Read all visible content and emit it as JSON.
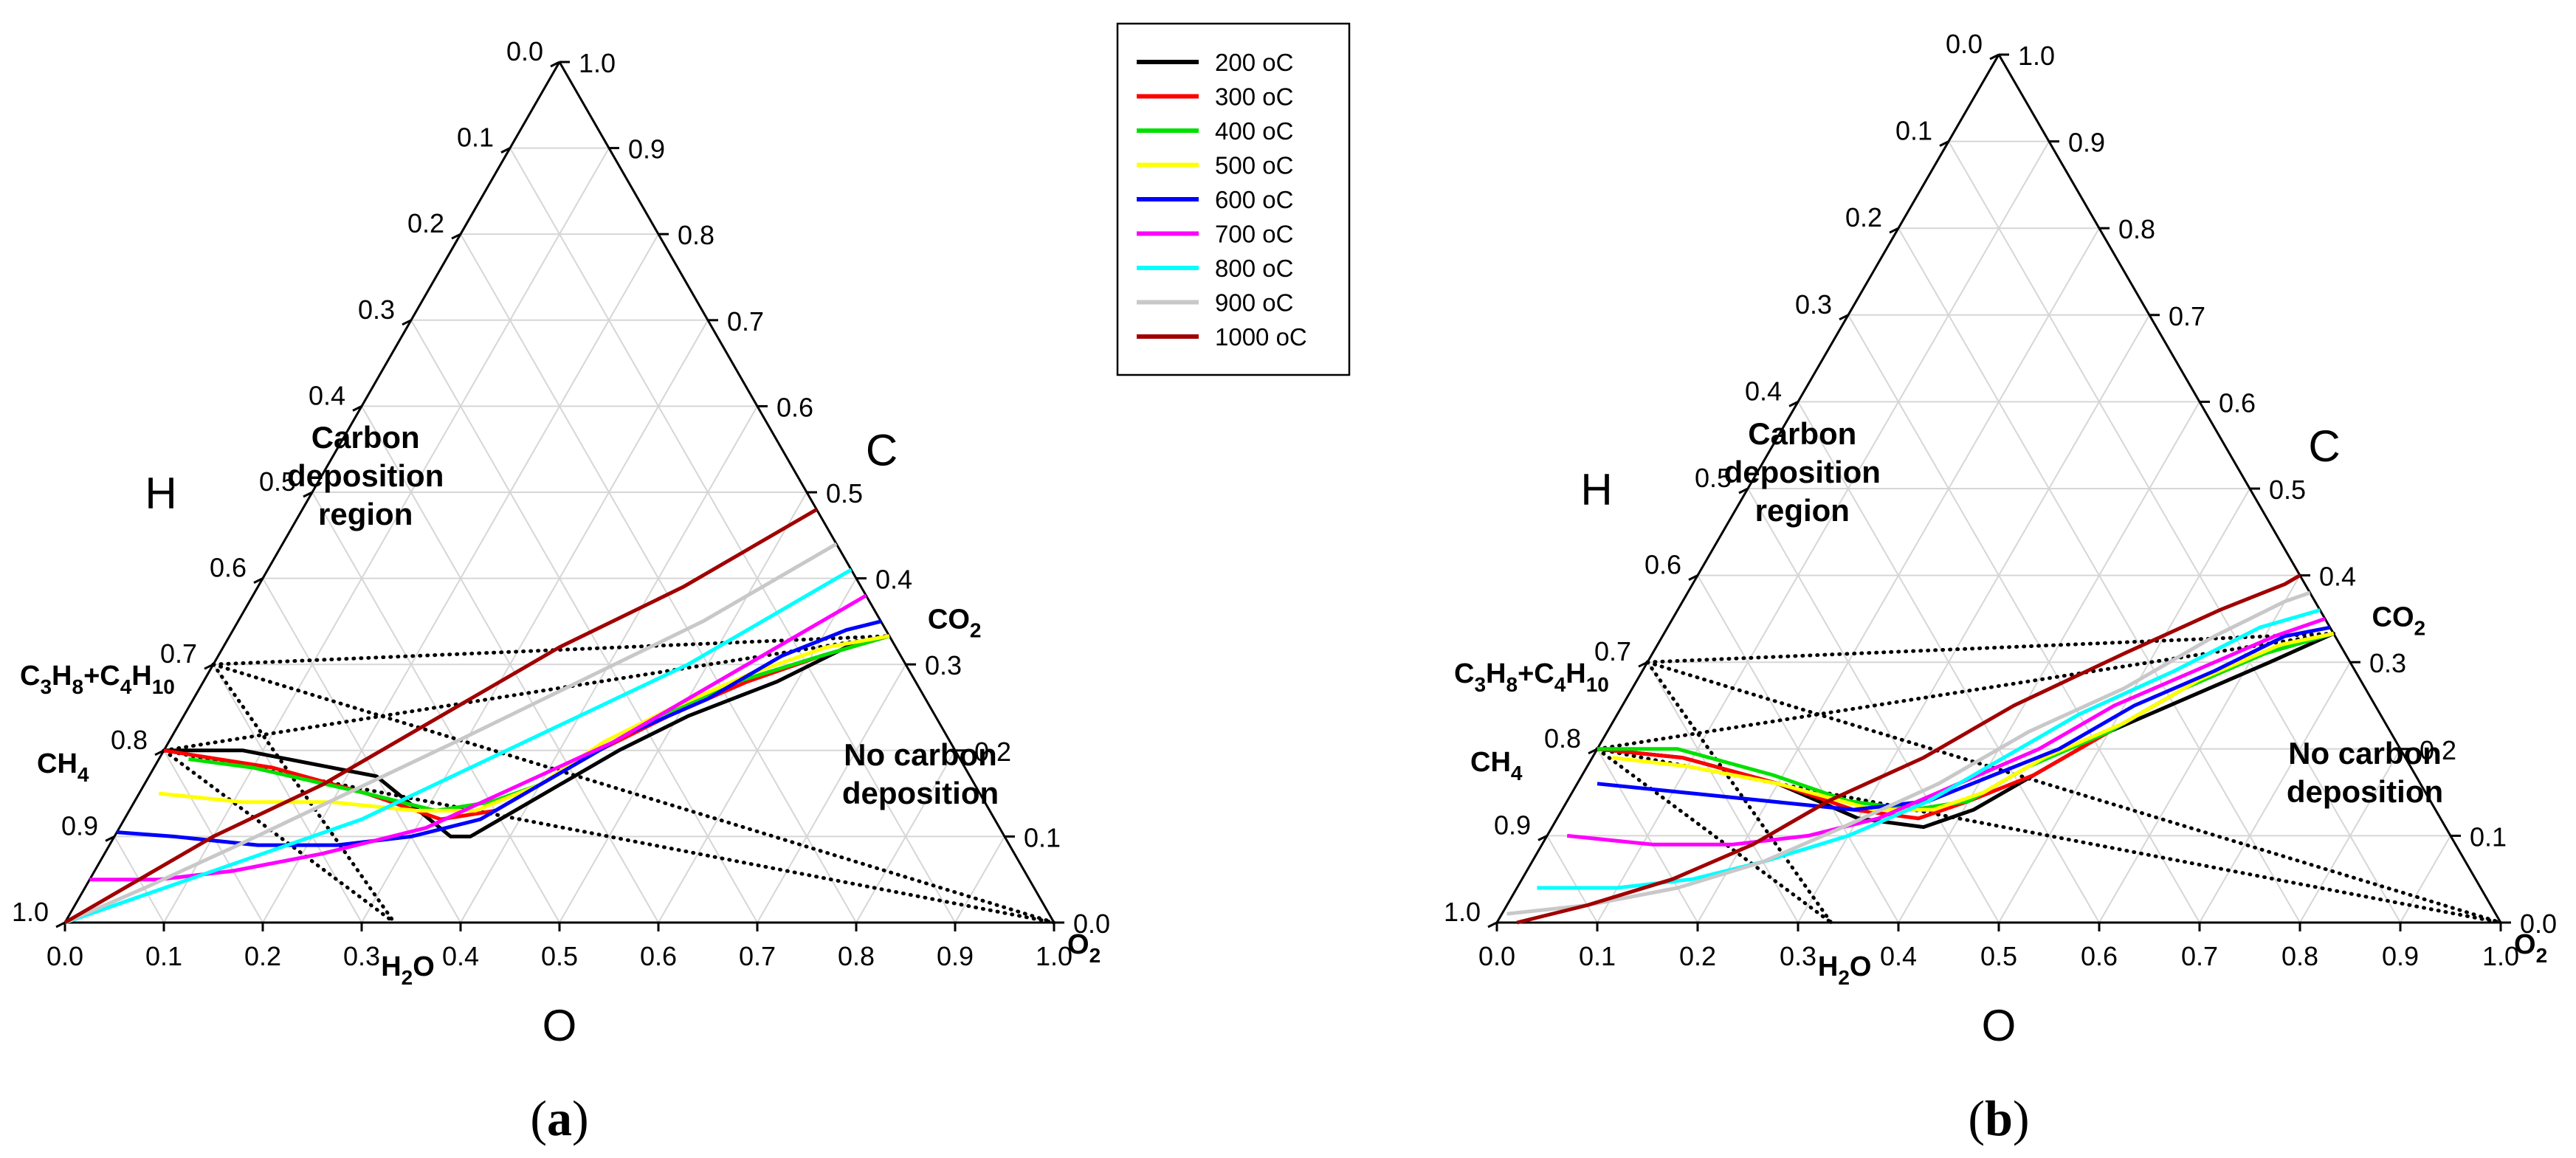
{
  "legend": [
    {
      "label": " 200 oC",
      "color": "#000000"
    },
    {
      "label": "300 oC",
      "color": "#ff0000"
    },
    {
      "label": "400 oC",
      "color": "#00e000"
    },
    {
      "label": "500 oC",
      "color": "#ffff00"
    },
    {
      "label": "600 oC",
      "color": "#0000ff"
    },
    {
      "label": "700 oC",
      "color": "#ff00ff"
    },
    {
      "label": "800 oC",
      "color": "#00ffff"
    },
    {
      "label": "900 oC",
      "color": "#c8c8c8"
    },
    {
      "label": "1000 oC",
      "color": "#a00000"
    }
  ],
  "colors": {
    "grid": "#d6d6d6",
    "axis": "#000000",
    "dotted": "#000000"
  },
  "chart_data": [
    {
      "type": "ternary",
      "panel_label": "a",
      "axis_titles": {
        "H": "H",
        "C": "C",
        "O": "O"
      },
      "ticks": {
        "H": [
          "0.0",
          "0.1",
          "0.2",
          "0.3",
          "0.4",
          "0.5",
          "0.6",
          "0.7",
          "0.8",
          "0.9",
          "1.0"
        ],
        "C": [
          "0.0",
          "0.1",
          "0.2",
          "0.3",
          "0.4",
          "0.5",
          "0.6",
          "0.7",
          "0.8",
          "0.9",
          "1.0"
        ],
        "O": [
          "0.0",
          "0.1",
          "0.2",
          "0.3",
          "0.4",
          "0.5",
          "0.6",
          "0.7",
          "0.8",
          "0.9",
          "1.0"
        ]
      },
      "regions": {
        "carbon": [
          "Carbon",
          "deposition",
          "region"
        ],
        "no_carbon": [
          "No carbon",
          "deposition"
        ]
      },
      "species": [
        {
          "name": "C3H8+C4H10",
          "h": 0.7,
          "c": 0.3,
          "base": [
            "C",
            "3",
            "H",
            "8",
            "+C",
            "4",
            "H",
            "10"
          ]
        },
        {
          "name": "CH4",
          "h": 0.8,
          "c": 0.2,
          "base": [
            "CH",
            "4"
          ]
        },
        {
          "name": "H2O",
          "h": 0.667,
          "c": 0.0,
          "base": [
            "H",
            "2",
            "O"
          ]
        },
        {
          "name": "CO2",
          "h": 0.0,
          "c": 0.333,
          "base": [
            "CO",
            "2"
          ]
        },
        {
          "name": "O2",
          "h": 0.0,
          "c": 0.0,
          "base": [
            "O",
            "2"
          ]
        }
      ],
      "dotted_lines": [
        [
          "C3H8+C4H10",
          "H2O"
        ],
        [
          "C3H8+C4H10",
          "CO2"
        ],
        [
          "C3H8+C4H10",
          "O2"
        ],
        [
          "CH4",
          "H2O"
        ],
        [
          "CH4",
          "CO2"
        ],
        [
          "CH4",
          "O2"
        ]
      ],
      "series": [
        {
          "name": " 200 oC",
          "points": [
            [
              0.8,
              0.2
            ],
            [
              0.72,
              0.2
            ],
            [
              0.6,
              0.17
            ],
            [
              0.56,
              0.1
            ],
            [
              0.54,
              0.1
            ],
            [
              0.52,
              0.11
            ],
            [
              0.48,
              0.13
            ],
            [
              0.42,
              0.16
            ],
            [
              0.34,
              0.2
            ],
            [
              0.25,
              0.24
            ],
            [
              0.14,
              0.28
            ],
            [
              0.05,
              0.32
            ],
            [
              0,
              0.333
            ]
          ]
        },
        {
          "name": "300 oC",
          "points": [
            [
              0.8,
              0.2
            ],
            [
              0.7,
              0.18
            ],
            [
              0.62,
              0.15
            ],
            [
              0.56,
              0.12
            ],
            [
              0.5,
              0.13
            ],
            [
              0.44,
              0.16
            ],
            [
              0.36,
              0.2
            ],
            [
              0.27,
              0.24
            ],
            [
              0.17,
              0.28
            ],
            [
              0.08,
              0.31
            ],
            [
              0,
              0.333
            ]
          ]
        },
        {
          "name": "400 oC",
          "points": [
            [
              0.78,
              0.19
            ],
            [
              0.72,
              0.18
            ],
            [
              0.62,
              0.15
            ],
            [
              0.56,
              0.13
            ],
            [
              0.5,
              0.14
            ],
            [
              0.44,
              0.16
            ],
            [
              0.36,
              0.2
            ],
            [
              0.28,
              0.24
            ],
            [
              0.18,
              0.28
            ],
            [
              0.08,
              0.31
            ],
            [
              0,
              0.333
            ]
          ]
        },
        {
          "name": "500 oC",
          "points": [
            [
              0.83,
              0.15
            ],
            [
              0.75,
              0.14
            ],
            [
              0.66,
              0.14
            ],
            [
              0.58,
              0.13
            ],
            [
              0.52,
              0.13
            ],
            [
              0.44,
              0.16
            ],
            [
              0.35,
              0.21
            ],
            [
              0.26,
              0.25
            ],
            [
              0.16,
              0.29
            ],
            [
              0.07,
              0.32
            ],
            [
              0,
              0.333
            ]
          ]
        },
        {
          "name": "600 oC",
          "points": [
            [
              0.895,
              0.105
            ],
            [
              0.84,
              0.1
            ],
            [
              0.76,
              0.09
            ],
            [
              0.68,
              0.09
            ],
            [
              0.6,
              0.1
            ],
            [
              0.52,
              0.12
            ],
            [
              0.42,
              0.17
            ],
            [
              0.32,
              0.22
            ],
            [
              0.22,
              0.26
            ],
            [
              0.12,
              0.31
            ],
            [
              0.04,
              0.34
            ],
            [
              0,
              0.35
            ]
          ]
        },
        {
          "name": "700 oC",
          "points": [
            [
              0.95,
              0.05
            ],
            [
              0.88,
              0.05
            ],
            [
              0.8,
              0.06
            ],
            [
              0.7,
              0.08
            ],
            [
              0.58,
              0.11
            ],
            [
              0.46,
              0.16
            ],
            [
              0.34,
              0.21
            ],
            [
              0.22,
              0.27
            ],
            [
              0.1,
              0.33
            ],
            [
              0.02,
              0.37
            ],
            [
              0,
              0.38
            ]
          ]
        },
        {
          "name": "800 oC",
          "points": [
            [
              1,
              0
            ],
            [
              0.88,
              0.04
            ],
            [
              0.76,
              0.08
            ],
            [
              0.64,
              0.12
            ],
            [
              0.5,
              0.18
            ],
            [
              0.36,
              0.24
            ],
            [
              0.22,
              0.3
            ],
            [
              0.08,
              0.37
            ],
            [
              0,
              0.41
            ]
          ]
        },
        {
          "name": "900 oC",
          "points": [
            [
              1,
              0
            ],
            [
              0.9,
              0.04
            ],
            [
              0.78,
              0.09
            ],
            [
              0.64,
              0.15
            ],
            [
              0.5,
              0.21
            ],
            [
              0.34,
              0.28
            ],
            [
              0.18,
              0.35
            ],
            [
              0.04,
              0.42
            ],
            [
              0,
              0.44
            ]
          ]
        },
        {
          "name": "1000 oC",
          "points": [
            [
              1,
              0
            ],
            [
              0.9,
              0.05
            ],
            [
              0.8,
              0.1
            ],
            [
              0.66,
              0.16
            ],
            [
              0.5,
              0.24
            ],
            [
              0.34,
              0.32
            ],
            [
              0.18,
              0.39
            ],
            [
              0.02,
              0.47
            ],
            [
              0,
              0.48
            ]
          ]
        }
      ]
    },
    {
      "type": "ternary",
      "panel_label": "b",
      "axis_titles": {
        "H": "H",
        "C": "C",
        "O": "O"
      },
      "ticks": {
        "H": [
          "0.0",
          "0.1",
          "0.2",
          "0.3",
          "0.4",
          "0.5",
          "0.6",
          "0.7",
          "0.8",
          "0.9",
          "1.0"
        ],
        "C": [
          "0.0",
          "0.1",
          "0.2",
          "0.3",
          "0.4",
          "0.5",
          "0.6",
          "0.7",
          "0.8",
          "0.9",
          "1.0"
        ],
        "O": [
          "0.0",
          "0.1",
          "0.2",
          "0.3",
          "0.4",
          "0.5",
          "0.6",
          "0.7",
          "0.8",
          "0.9",
          "1.0"
        ]
      },
      "regions": {
        "carbon": [
          "Carbon",
          "deposition",
          "region"
        ],
        "no_carbon": [
          "No carbon",
          "deposition"
        ]
      },
      "species": [
        {
          "name": "C3H8+C4H10",
          "h": 0.7,
          "c": 0.3,
          "base": [
            "C",
            "3",
            "H",
            "8",
            "+C",
            "4",
            "H",
            "10"
          ]
        },
        {
          "name": "CH4",
          "h": 0.8,
          "c": 0.2,
          "base": [
            "CH",
            "4"
          ]
        },
        {
          "name": "H2O",
          "h": 0.667,
          "c": 0.0,
          "base": [
            "H",
            "2",
            "O"
          ]
        },
        {
          "name": "CO2",
          "h": 0.0,
          "c": 0.333,
          "base": [
            "CO",
            "2"
          ]
        },
        {
          "name": "O2",
          "h": 0.0,
          "c": 0.0,
          "base": [
            "O",
            "2"
          ]
        }
      ],
      "dotted_lines": [
        [
          "C3H8+C4H10",
          "H2O"
        ],
        [
          "C3H8+C4H10",
          "CO2"
        ],
        [
          "C3H8+C4H10",
          "O2"
        ],
        [
          "CH4",
          "H2O"
        ],
        [
          "CH4",
          "CO2"
        ],
        [
          "CH4",
          "O2"
        ]
      ],
      "series": [
        {
          "name": " 200 oC",
          "points": [
            [
              0.8,
              0.2
            ],
            [
              0.72,
              0.19
            ],
            [
              0.64,
              0.16
            ],
            [
              0.58,
              0.12
            ],
            [
              0.52,
              0.11
            ],
            [
              0.46,
              0.13
            ],
            [
              0.38,
              0.17
            ],
            [
              0.28,
              0.22
            ],
            [
              0.18,
              0.26
            ],
            [
              0.08,
              0.3
            ],
            [
              0,
              0.333
            ]
          ]
        },
        {
          "name": "300 oC",
          "points": [
            [
              0.8,
              0.2
            ],
            [
              0.72,
              0.19
            ],
            [
              0.64,
              0.16
            ],
            [
              0.58,
              0.13
            ],
            [
              0.52,
              0.12
            ],
            [
              0.46,
              0.14
            ],
            [
              0.38,
              0.17
            ],
            [
              0.28,
              0.22
            ],
            [
              0.18,
              0.27
            ],
            [
              0.08,
              0.31
            ],
            [
              0,
              0.333
            ]
          ]
        },
        {
          "name": "400 oC",
          "points": [
            [
              0.8,
              0.2
            ],
            [
              0.72,
              0.2
            ],
            [
              0.64,
              0.17
            ],
            [
              0.58,
              0.14
            ],
            [
              0.52,
              0.13
            ],
            [
              0.46,
              0.14
            ],
            [
              0.38,
              0.18
            ],
            [
              0.28,
              0.22
            ],
            [
              0.18,
              0.27
            ],
            [
              0.08,
              0.31
            ],
            [
              0,
              0.333
            ]
          ]
        },
        {
          "name": "500 oC",
          "points": [
            [
              0.79,
              0.19
            ],
            [
              0.72,
              0.18
            ],
            [
              0.64,
              0.16
            ],
            [
              0.56,
              0.13
            ],
            [
              0.5,
              0.13
            ],
            [
              0.44,
              0.15
            ],
            [
              0.36,
              0.19
            ],
            [
              0.26,
              0.23
            ],
            [
              0.16,
              0.28
            ],
            [
              0.06,
              0.32
            ],
            [
              0,
              0.333
            ]
          ]
        },
        {
          "name": "600 oC",
          "points": [
            [
              0.82,
              0.16
            ],
            [
              0.74,
              0.15
            ],
            [
              0.66,
              0.14
            ],
            [
              0.58,
              0.13
            ],
            [
              0.5,
              0.14
            ],
            [
              0.42,
              0.17
            ],
            [
              0.34,
              0.2
            ],
            [
              0.24,
              0.25
            ],
            [
              0.14,
              0.29
            ],
            [
              0.05,
              0.33
            ],
            [
              0,
              0.34
            ]
          ]
        },
        {
          "name": "700 oC",
          "points": [
            [
              0.88,
              0.1
            ],
            [
              0.8,
              0.09
            ],
            [
              0.72,
              0.09
            ],
            [
              0.64,
              0.1
            ],
            [
              0.56,
              0.12
            ],
            [
              0.46,
              0.16
            ],
            [
              0.36,
              0.2
            ],
            [
              0.26,
              0.25
            ],
            [
              0.16,
              0.29
            ],
            [
              0.06,
              0.33
            ],
            [
              0,
              0.35
            ]
          ]
        },
        {
          "name": "800 oC",
          "points": [
            [
              0.94,
              0.04
            ],
            [
              0.86,
              0.04
            ],
            [
              0.78,
              0.05
            ],
            [
              0.7,
              0.07
            ],
            [
              0.6,
              0.1
            ],
            [
              0.5,
              0.14
            ],
            [
              0.4,
              0.19
            ],
            [
              0.3,
              0.24
            ],
            [
              0.18,
              0.29
            ],
            [
              0.07,
              0.34
            ],
            [
              0,
              0.36
            ]
          ]
        },
        {
          "name": "900 oC",
          "points": [
            [
              0.985,
              0.01
            ],
            [
              0.9,
              0.02
            ],
            [
              0.8,
              0.04
            ],
            [
              0.7,
              0.07
            ],
            [
              0.6,
              0.11
            ],
            [
              0.48,
              0.16
            ],
            [
              0.36,
              0.22
            ],
            [
              0.24,
              0.27
            ],
            [
              0.12,
              0.33
            ],
            [
              0.03,
              0.37
            ],
            [
              0,
              0.38
            ]
          ]
        },
        {
          "name": "1000 oC",
          "points": [
            [
              0.98,
              0
            ],
            [
              0.9,
              0.02
            ],
            [
              0.8,
              0.05
            ],
            [
              0.7,
              0.09
            ],
            [
              0.6,
              0.14
            ],
            [
              0.48,
              0.19
            ],
            [
              0.36,
              0.25
            ],
            [
              0.22,
              0.31
            ],
            [
              0.1,
              0.36
            ],
            [
              0.02,
              0.39
            ],
            [
              0,
              0.4
            ]
          ]
        }
      ]
    }
  ]
}
